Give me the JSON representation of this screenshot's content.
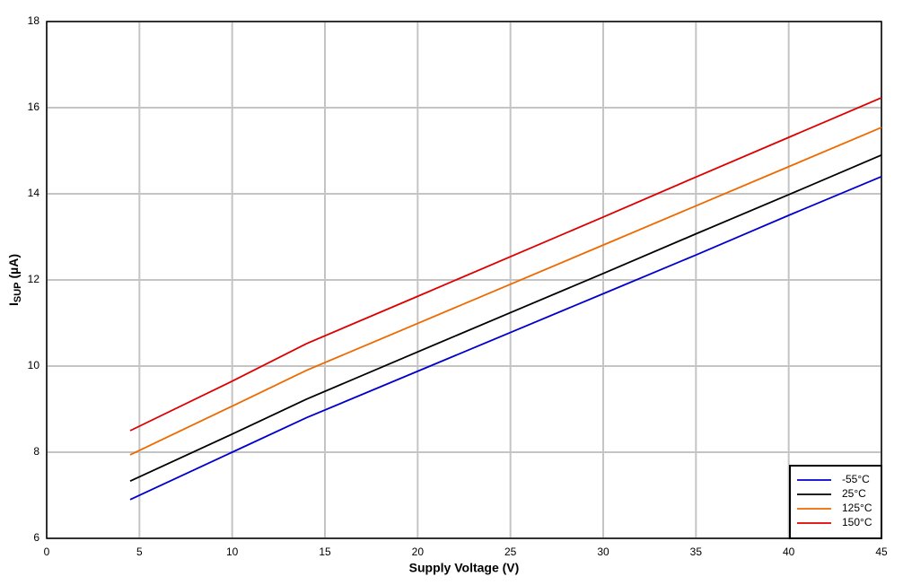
{
  "chart_data": {
    "type": "line",
    "xlabel": "Supply Voltage (V)",
    "ylabel_parts": [
      "I",
      "SUP",
      "(µA)"
    ],
    "x": [
      4.5,
      10,
      14,
      20,
      25,
      30,
      35,
      40,
      45
    ],
    "series": [
      {
        "name": "-55°C",
        "color": "#0000cc",
        "values": [
          6.9,
          8.0,
          8.8,
          9.88,
          10.78,
          11.68,
          12.58,
          13.5,
          14.4
        ]
      },
      {
        "name": "25°C",
        "color": "#000000",
        "values": [
          7.33,
          8.42,
          9.23,
          10.33,
          11.24,
          12.15,
          13.07,
          13.98,
          14.9
        ]
      },
      {
        "name": "125°C",
        "color": "#ee6a00",
        "values": [
          7.94,
          9.07,
          9.9,
          10.99,
          11.9,
          12.81,
          13.72,
          14.63,
          15.54
        ]
      },
      {
        "name": "150°C",
        "color": "#dd0000",
        "values": [
          8.5,
          9.65,
          10.52,
          11.62,
          12.54,
          13.46,
          14.39,
          15.31,
          16.23
        ]
      }
    ],
    "xlim": [
      0,
      45
    ],
    "xticks": [
      0,
      5,
      10,
      15,
      20,
      25,
      30,
      35,
      40,
      45
    ],
    "ylim": [
      6,
      18
    ],
    "yticks": [
      6,
      8,
      10,
      12,
      14,
      16,
      18
    ],
    "grid": true,
    "legend": "lower right"
  }
}
